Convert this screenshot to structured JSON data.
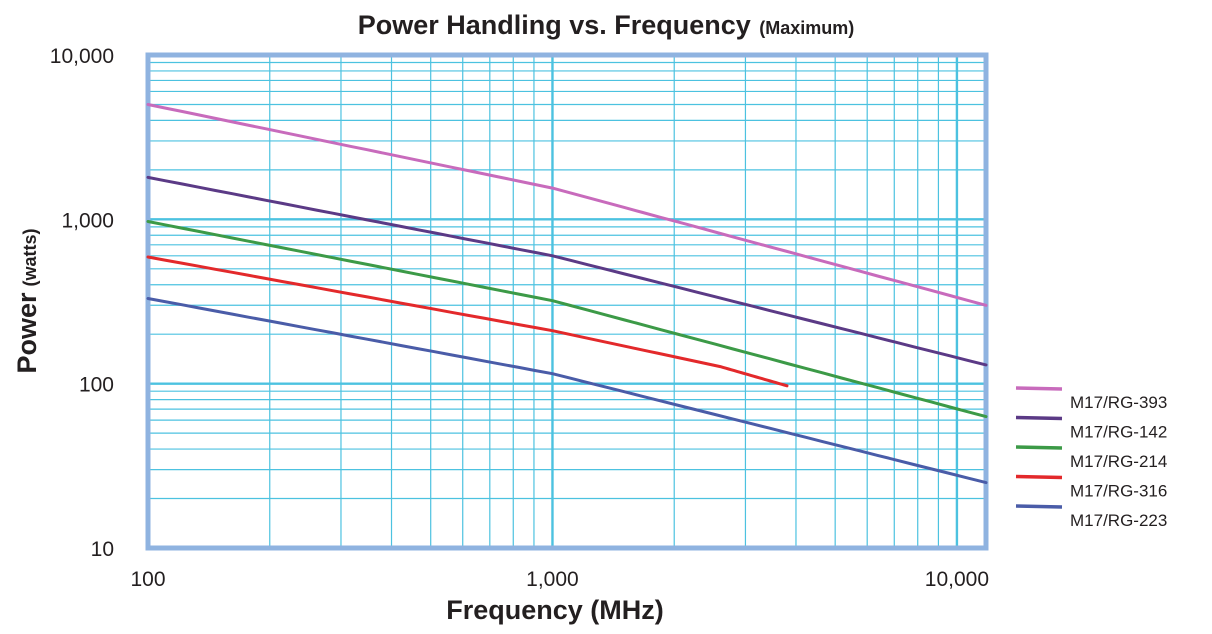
{
  "chart_data": {
    "type": "line",
    "title": "Power Handling vs. Frequency",
    "subtitle": "(Maximum)",
    "xlabel": "Frequency (MHz)",
    "ylabel": "Power",
    "ylabel_unit": "(watts)",
    "x_scale": "log",
    "y_scale": "log",
    "xlim": [
      100,
      11800
    ],
    "ylim": [
      10,
      10000
    ],
    "x_ticks": [
      {
        "value": 100,
        "label": "100"
      },
      {
        "value": 1000,
        "label": "1,000"
      },
      {
        "value": 10000,
        "label": "10,000"
      }
    ],
    "y_ticks": [
      {
        "value": 10,
        "label": "10"
      },
      {
        "value": 100,
        "label": "100"
      },
      {
        "value": 1000,
        "label": "1,000"
      },
      {
        "value": 10000,
        "label": "10,000"
      }
    ],
    "grid": true,
    "legend_position": "right",
    "series": [
      {
        "name": "M17/RG-393",
        "color": "#c86bbc",
        "x": [
          100,
          1000,
          11800
        ],
        "y": [
          5000,
          1550,
          300
        ]
      },
      {
        "name": "M17/RG-142",
        "color": "#5b3a86",
        "x": [
          100,
          1000,
          11800
        ],
        "y": [
          1800,
          600,
          130
        ]
      },
      {
        "name": "M17/RG-214",
        "color": "#3c9a47",
        "x": [
          100,
          1000,
          11800
        ],
        "y": [
          970,
          320,
          63
        ]
      },
      {
        "name": "M17/RG-316",
        "color": "#e3292b",
        "x": [
          100,
          1000,
          2600,
          3800
        ],
        "y": [
          590,
          210,
          127,
          97
        ]
      },
      {
        "name": "M17/RG-223",
        "color": "#4a5ca8",
        "x": [
          100,
          1000,
          11800
        ],
        "y": [
          330,
          115,
          25
        ]
      }
    ]
  },
  "colors": {
    "grid": "#4cc2e0",
    "frame": "#8fb3e0",
    "text": "#231f20"
  }
}
